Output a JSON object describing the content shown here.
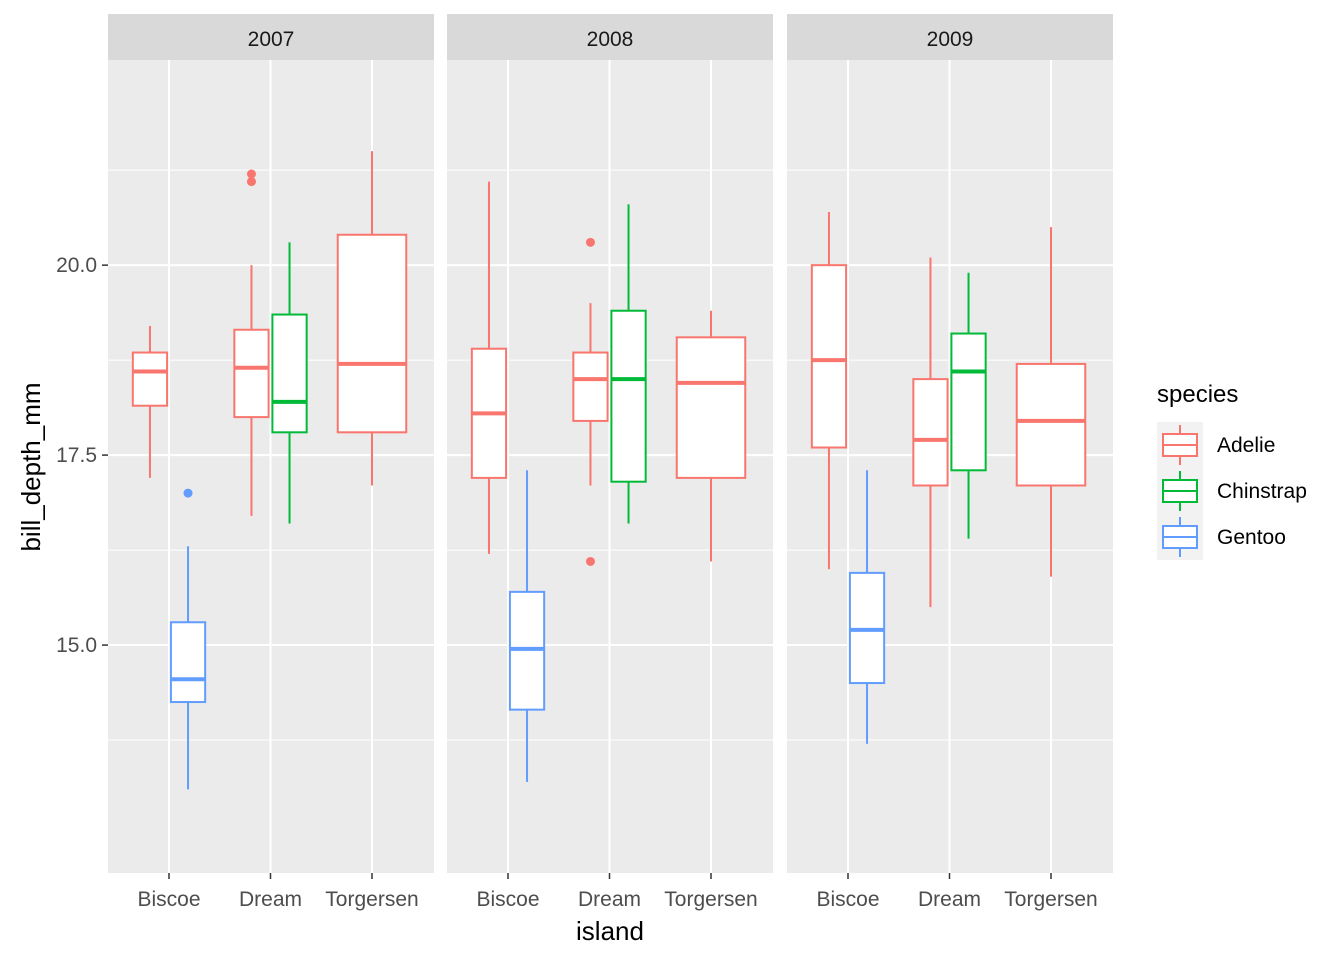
{
  "chart_data": {
    "type": "boxplot",
    "facet_var": "year",
    "facets": [
      "2007",
      "2008",
      "2009"
    ],
    "categories": [
      "Biscoe",
      "Dream",
      "Torgersen"
    ],
    "xlabel": "island",
    "ylabel": "bill_depth_mm",
    "ylim": [
      12.0,
      22.7
    ],
    "yticks": [
      15.0,
      17.5,
      20.0
    ],
    "ytick_labels": [
      "15.0",
      "17.5",
      "20.0"
    ],
    "grid": true,
    "legend": {
      "title": "species",
      "position": "right",
      "entries": [
        {
          "name": "Adelie",
          "color": "#F8766D"
        },
        {
          "name": "Chinstrap",
          "color": "#00BA38"
        },
        {
          "name": "Gentoo",
          "color": "#619CFF"
        }
      ]
    },
    "colors": {
      "panel_bg": "#EBEBEB",
      "strip_bg": "#D9D9D9",
      "grid": "#FFFFFF",
      "text": "#4D4D4D"
    },
    "boxes": [
      {
        "facet": "2007",
        "island": "Biscoe",
        "species": "Adelie",
        "whisker_low": 17.2,
        "q1": 18.15,
        "median": 18.6,
        "q3": 18.85,
        "whisker_high": 19.2,
        "outliers": []
      },
      {
        "facet": "2007",
        "island": "Biscoe",
        "species": "Gentoo",
        "whisker_low": 13.1,
        "q1": 14.25,
        "median": 14.55,
        "q3": 15.3,
        "whisker_high": 16.3,
        "outliers": [
          17.0
        ]
      },
      {
        "facet": "2007",
        "island": "Dream",
        "species": "Adelie",
        "whisker_low": 16.7,
        "q1": 18.0,
        "median": 18.65,
        "q3": 19.15,
        "whisker_high": 20.0,
        "outliers": [
          21.1,
          21.2
        ]
      },
      {
        "facet": "2007",
        "island": "Dream",
        "species": "Chinstrap",
        "whisker_low": 16.6,
        "q1": 17.8,
        "median": 18.2,
        "q3": 19.35,
        "whisker_high": 20.3,
        "outliers": []
      },
      {
        "facet": "2007",
        "island": "Torgersen",
        "species": "Adelie",
        "whisker_low": 17.1,
        "q1": 17.8,
        "median": 18.7,
        "q3": 20.4,
        "whisker_high": 21.5,
        "outliers": []
      },
      {
        "facet": "2008",
        "island": "Biscoe",
        "species": "Adelie",
        "whisker_low": 16.2,
        "q1": 17.2,
        "median": 18.05,
        "q3": 18.9,
        "whisker_high": 21.1,
        "outliers": []
      },
      {
        "facet": "2008",
        "island": "Biscoe",
        "species": "Gentoo",
        "whisker_low": 13.2,
        "q1": 14.15,
        "median": 14.95,
        "q3": 15.7,
        "whisker_high": 17.3,
        "outliers": []
      },
      {
        "facet": "2008",
        "island": "Dream",
        "species": "Adelie",
        "whisker_low": 17.1,
        "q1": 17.95,
        "median": 18.5,
        "q3": 18.85,
        "whisker_high": 19.5,
        "outliers": [
          20.3,
          16.1
        ]
      },
      {
        "facet": "2008",
        "island": "Dream",
        "species": "Chinstrap",
        "whisker_low": 16.6,
        "q1": 17.15,
        "median": 18.5,
        "q3": 19.4,
        "whisker_high": 20.8,
        "outliers": []
      },
      {
        "facet": "2008",
        "island": "Torgersen",
        "species": "Adelie",
        "whisker_low": 16.1,
        "q1": 17.2,
        "median": 18.45,
        "q3": 19.05,
        "whisker_high": 19.4,
        "outliers": []
      },
      {
        "facet": "2009",
        "island": "Biscoe",
        "species": "Adelie",
        "whisker_low": 16.0,
        "q1": 17.6,
        "median": 18.75,
        "q3": 20.0,
        "whisker_high": 20.7,
        "outliers": []
      },
      {
        "facet": "2009",
        "island": "Biscoe",
        "species": "Gentoo",
        "whisker_low": 13.7,
        "q1": 14.5,
        "median": 15.2,
        "q3": 15.95,
        "whisker_high": 17.3,
        "outliers": []
      },
      {
        "facet": "2009",
        "island": "Dream",
        "species": "Adelie",
        "whisker_low": 15.5,
        "q1": 17.1,
        "median": 17.7,
        "q3": 18.5,
        "whisker_high": 20.1,
        "outliers": []
      },
      {
        "facet": "2009",
        "island": "Dream",
        "species": "Chinstrap",
        "whisker_low": 16.4,
        "q1": 17.3,
        "median": 18.6,
        "q3": 19.1,
        "whisker_high": 19.9,
        "outliers": []
      },
      {
        "facet": "2009",
        "island": "Torgersen",
        "species": "Adelie",
        "whisker_low": 15.9,
        "q1": 17.1,
        "median": 17.95,
        "q3": 18.7,
        "whisker_high": 20.5,
        "outliers": []
      }
    ]
  }
}
